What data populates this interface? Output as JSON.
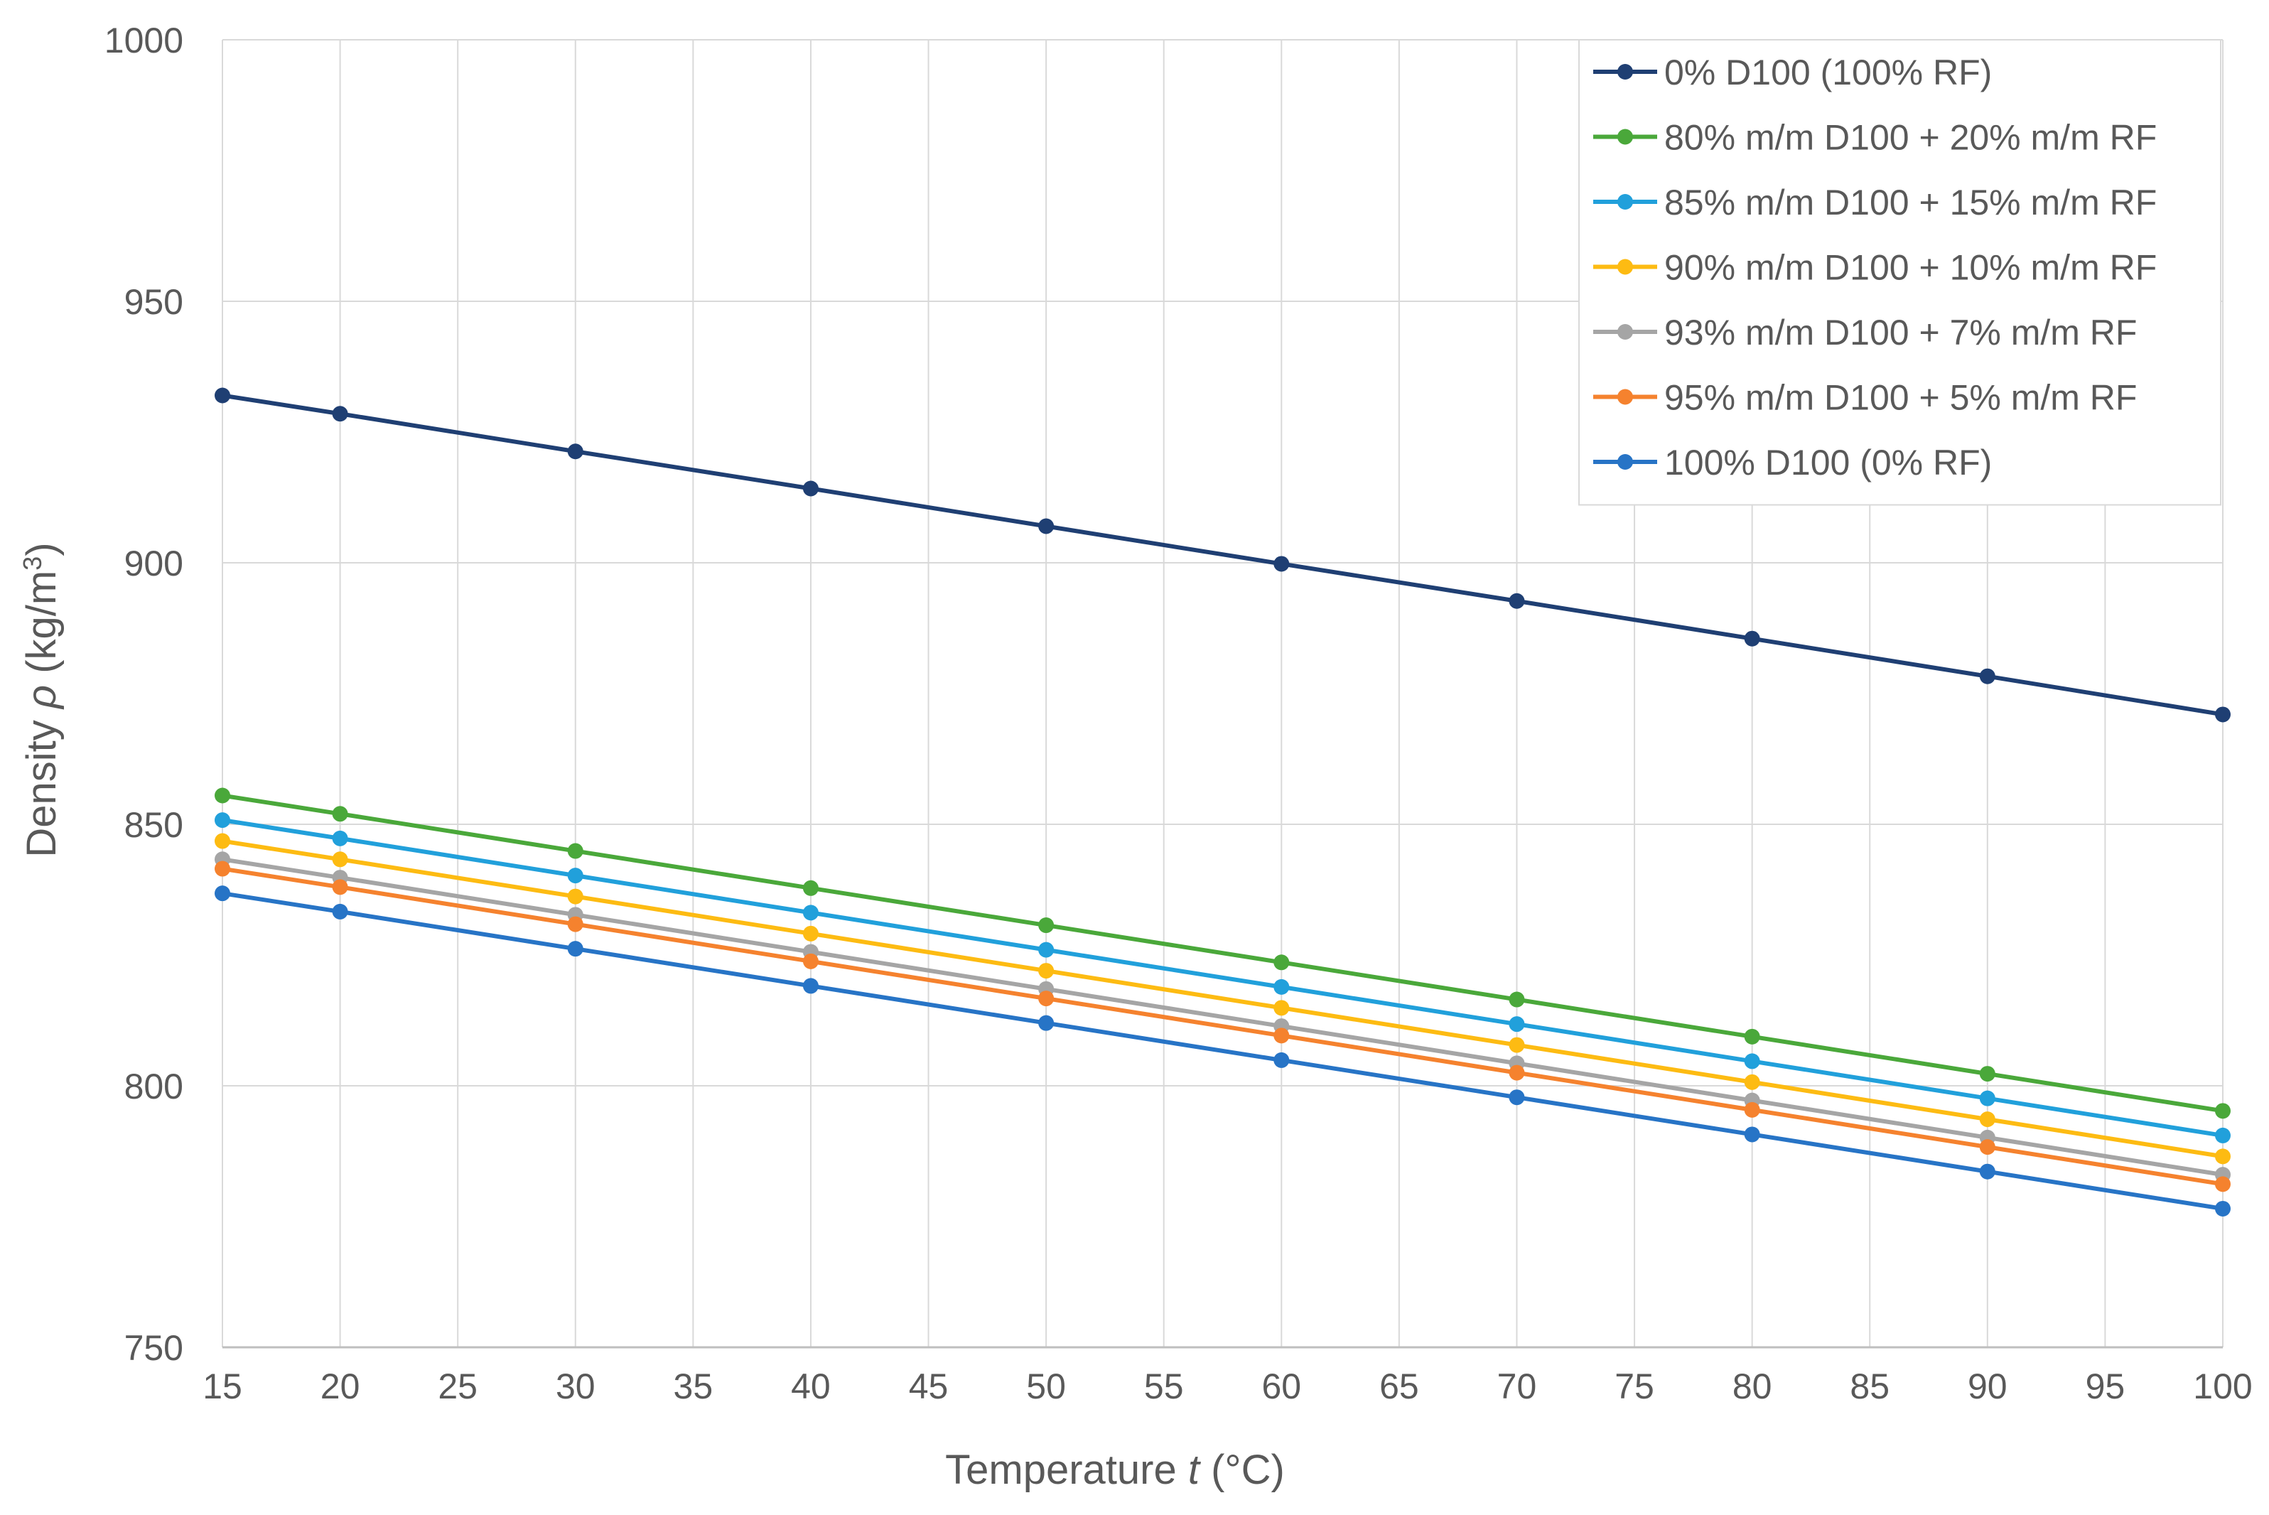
{
  "chart_data": {
    "type": "line",
    "title": "",
    "xlabel": {
      "prefix": "Temperature ",
      "variable": "t",
      "suffix": " (°C)"
    },
    "ylabel": {
      "prefix": "Density ",
      "variable": "ρ",
      "suffix": " (kg/m",
      "superscript": "3",
      "close": ")"
    },
    "xlim": [
      15,
      100
    ],
    "ylim": [
      750,
      1000
    ],
    "x_ticks": [
      15,
      20,
      25,
      30,
      35,
      40,
      45,
      50,
      55,
      60,
      65,
      70,
      75,
      80,
      85,
      90,
      95,
      100
    ],
    "y_ticks": [
      750,
      800,
      850,
      900,
      950,
      1000
    ],
    "grid": true,
    "legend_position": "top-right",
    "x": [
      15,
      20,
      30,
      40,
      50,
      60,
      70,
      80,
      90,
      100
    ],
    "series": [
      {
        "name": "0% D100 (100% RF)",
        "color": "#1f3f73",
        "values": [
          932.0,
          928.5,
          921.3,
          914.2,
          907.0,
          899.8,
          892.7,
          885.5,
          878.3,
          871.0
        ]
      },
      {
        "name": "80% m/m D100 + 20% m/m RF",
        "color": "#4aa83a",
        "values": [
          855.5,
          852.0,
          844.9,
          837.8,
          830.7,
          823.6,
          816.5,
          809.4,
          802.3,
          795.2
        ]
      },
      {
        "name": "85% m/m D100 + 15% m/m RF",
        "color": "#21a0db",
        "values": [
          850.8,
          847.3,
          840.2,
          833.1,
          826.0,
          818.9,
          811.8,
          804.7,
          797.6,
          790.5
        ]
      },
      {
        "name": "90% m/m D100 + 10% m/m RF",
        "color": "#fdbb12",
        "values": [
          846.8,
          843.3,
          836.2,
          829.1,
          822.0,
          814.9,
          807.8,
          800.7,
          793.6,
          786.5
        ]
      },
      {
        "name": "93% m/m D100 + 7% m/m RF",
        "color": "#a5a5a5",
        "values": [
          843.3,
          839.8,
          832.7,
          825.6,
          818.5,
          811.4,
          804.3,
          797.2,
          790.1,
          783.0
        ]
      },
      {
        "name": "95% m/m D100 + 5% m/m RF",
        "color": "#f5822e",
        "values": [
          841.5,
          838.0,
          830.9,
          823.8,
          816.7,
          809.6,
          802.5,
          795.4,
          788.3,
          781.2
        ]
      },
      {
        "name": "100% D100 (0% RF)",
        "color": "#2774c6",
        "values": [
          836.8,
          833.3,
          826.2,
          819.1,
          812.0,
          804.9,
          797.8,
          790.7,
          783.6,
          776.5
        ]
      }
    ]
  }
}
